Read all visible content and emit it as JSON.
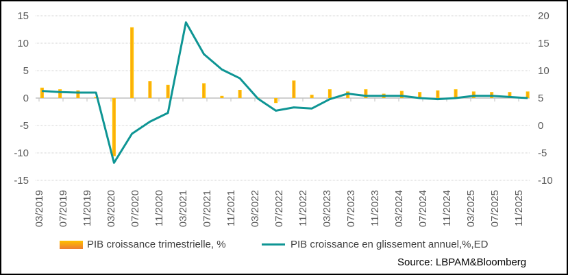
{
  "chart_data": {
    "type": "bar+line",
    "x": [
      "03/2019",
      "06/2019",
      "09/2019",
      "12/2019",
      "03/2020",
      "06/2020",
      "09/2020",
      "12/2020",
      "03/2021",
      "06/2021",
      "09/2021",
      "12/2021",
      "03/2022",
      "06/2022",
      "09/2022",
      "12/2022",
      "03/2023",
      "06/2023",
      "09/2023",
      "12/2023",
      "03/2024",
      "06/2024",
      "09/2024",
      "12/2024",
      "03/2025",
      "06/2025",
      "09/2025",
      "12/2025"
    ],
    "x_tick_labels": [
      "03/2019",
      "07/2019",
      "11/2019",
      "03/2020",
      "07/2020",
      "11/2020",
      "03/2021",
      "07/2021",
      "11/2021",
      "03/2022",
      "07/2022",
      "11/2022",
      "03/2023",
      "07/2023",
      "11/2023",
      "03/2024",
      "07/2024",
      "11/2024",
      "03/2025",
      "07/2025",
      "11/2025"
    ],
    "series": [
      {
        "name": "PIB croissance trimestrielle, %",
        "type": "bar",
        "axis": "left",
        "color": "#FFC000",
        "values": [
          1.9,
          1.6,
          1.4,
          0.2,
          -10.6,
          12.9,
          3.1,
          2.4,
          0,
          2.7,
          0.4,
          1.5,
          0.1,
          -0.9,
          3.2,
          0.6,
          1.6,
          1.2,
          1.6,
          0.8,
          1.3,
          1.1,
          1.4,
          1.6,
          1.2,
          1.1,
          1.1,
          1.2
        ]
      },
      {
        "name": "PIB croissance en glissement annuel,%,ED",
        "type": "line",
        "axis": "right",
        "color": "#0E9594",
        "values": [
          6.3,
          6.1,
          6.0,
          6.0,
          -6.8,
          -1.5,
          0.7,
          2.3,
          18.8,
          13.0,
          10.2,
          8.6,
          4.9,
          2.7,
          3.3,
          3.1,
          4.8,
          5.8,
          5.4,
          5.4,
          5.4,
          5.0,
          4.8,
          5.0,
          5.4,
          5.4,
          5.2,
          5.0
        ]
      }
    ],
    "y_left": {
      "range": [
        -15,
        15
      ],
      "ticks": [
        -15,
        -10,
        -5,
        0,
        5,
        10,
        15
      ]
    },
    "y_right": {
      "range": [
        -10,
        20
      ],
      "ticks": [
        -10,
        -5,
        0,
        5,
        10,
        15,
        20
      ]
    },
    "grid": true,
    "legend_position": "bottom",
    "source": "Source: LBPAM&Bloomberg"
  }
}
